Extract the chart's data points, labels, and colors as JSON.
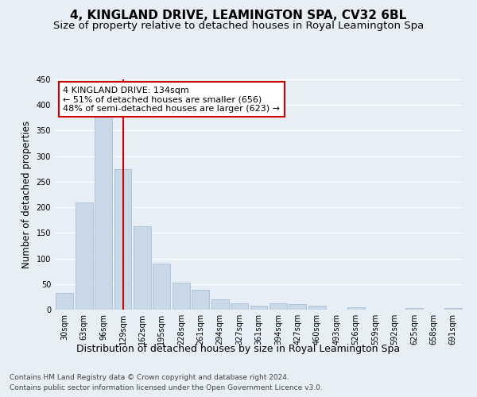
{
  "title1": "4, KINGLAND DRIVE, LEAMINGTON SPA, CV32 6BL",
  "title2": "Size of property relative to detached houses in Royal Leamington Spa",
  "xlabel": "Distribution of detached houses by size in Royal Leamington Spa",
  "ylabel": "Number of detached properties",
  "categories": [
    "30sqm",
    "63sqm",
    "96sqm",
    "129sqm",
    "162sqm",
    "195sqm",
    "228sqm",
    "261sqm",
    "294sqm",
    "327sqm",
    "361sqm",
    "394sqm",
    "427sqm",
    "460sqm",
    "493sqm",
    "526sqm",
    "559sqm",
    "592sqm",
    "625sqm",
    "658sqm",
    "691sqm"
  ],
  "values": [
    33,
    210,
    378,
    275,
    163,
    90,
    52,
    39,
    20,
    12,
    7,
    12,
    11,
    7,
    0,
    5,
    0,
    0,
    3,
    0,
    3
  ],
  "bar_color": "#c8d8e8",
  "bar_edge_color": "#a0b8cc",
  "vline_x": 3,
  "vline_color": "#cc0000",
  "annotation_text": "4 KINGLAND DRIVE: 134sqm\n← 51% of detached houses are smaller (656)\n48% of semi-detached houses are larger (623) →",
  "annotation_box_color": "#ffffff",
  "annotation_box_edge_color": "#cc0000",
  "ylim": [
    0,
    450
  ],
  "yticks": [
    0,
    50,
    100,
    150,
    200,
    250,
    300,
    350,
    400,
    450
  ],
  "bg_color": "#e8eef5",
  "plot_bg_color": "#e8eef5",
  "grid_color": "#ffffff",
  "footer1": "Contains HM Land Registry data © Crown copyright and database right 2024.",
  "footer2": "Contains public sector information licensed under the Open Government Licence v3.0.",
  "title1_fontsize": 11,
  "title2_fontsize": 9.5,
  "xlabel_fontsize": 9,
  "ylabel_fontsize": 8.5,
  "tick_fontsize": 7,
  "annotation_fontsize": 8,
  "footer_fontsize": 6.5
}
